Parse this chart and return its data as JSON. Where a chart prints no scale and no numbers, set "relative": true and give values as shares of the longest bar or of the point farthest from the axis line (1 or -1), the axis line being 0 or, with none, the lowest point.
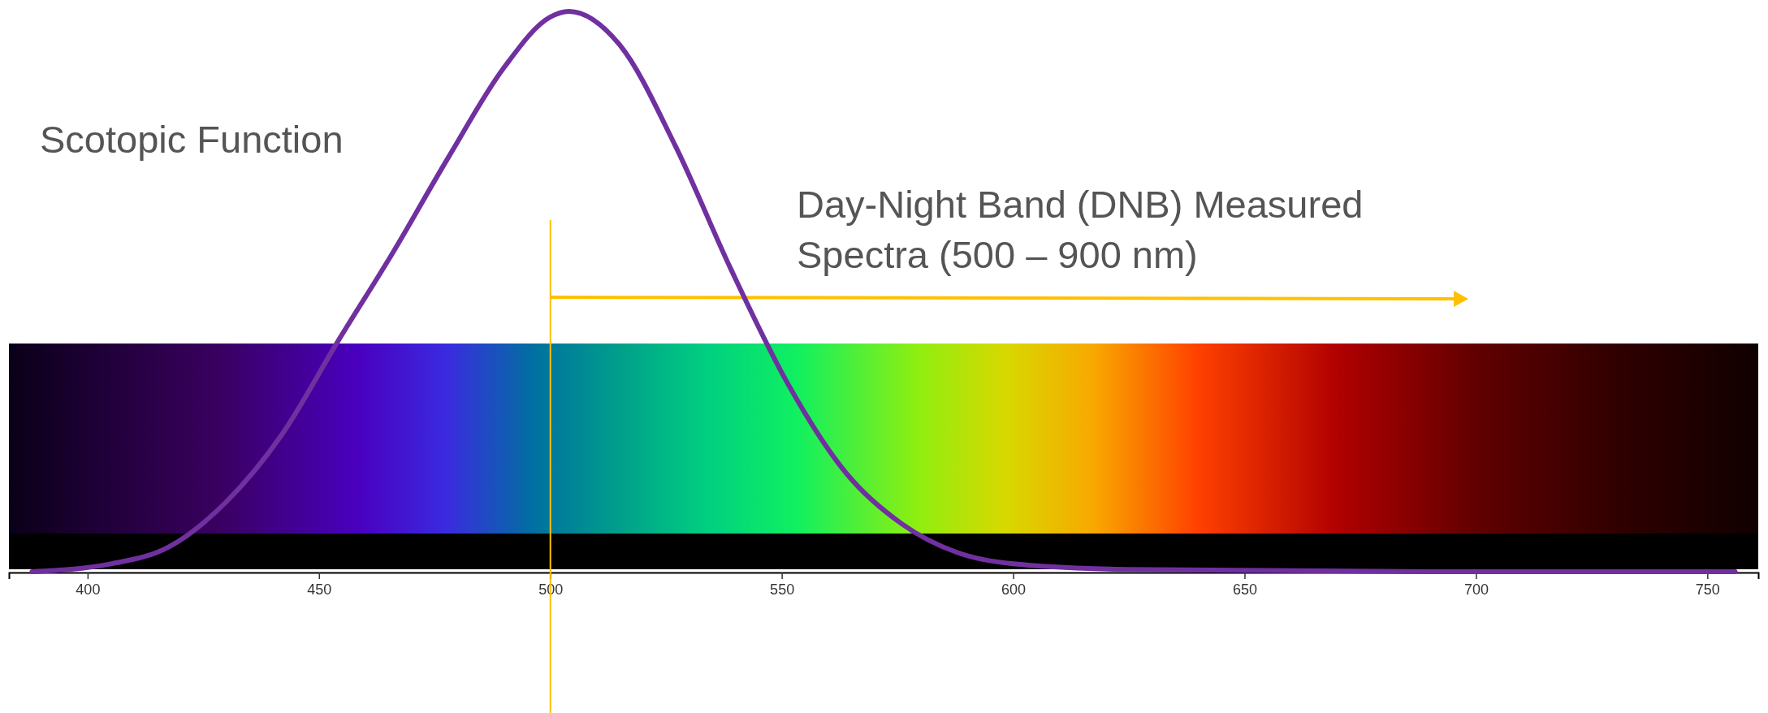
{
  "chart_data": {
    "type": "line",
    "relative": true,
    "x": [
      388,
      405,
      417.5,
      430,
      442,
      454,
      466,
      478,
      490,
      500,
      504,
      515,
      527,
      539,
      551,
      564,
      576,
      588,
      600,
      625,
      690,
      756
    ],
    "series": [
      {
        "color": "#7030a0",
        "values": [
          0,
          0.014,
          0.044,
          0.125,
          0.245,
          0.41,
          0.57,
          0.74,
          0.9,
          0.99,
          1,
          0.94,
          0.76,
          0.54,
          0.34,
          0.175,
          0.085,
          0.034,
          0.014,
          0.004,
          0,
          0
        ]
      }
    ],
    "xlim": [
      383,
      761
    ],
    "xticks": [
      400,
      450,
      500,
      550,
      600,
      650,
      700,
      750
    ],
    "ref_lines": [
      {
        "axis": "x",
        "value": 500,
        "color": "#ffc000"
      }
    ],
    "annotations": [
      "Scotopic Function",
      "Day-Night Band (DNB) Measured Spectra (500 – 900 nm)"
    ]
  }
}
